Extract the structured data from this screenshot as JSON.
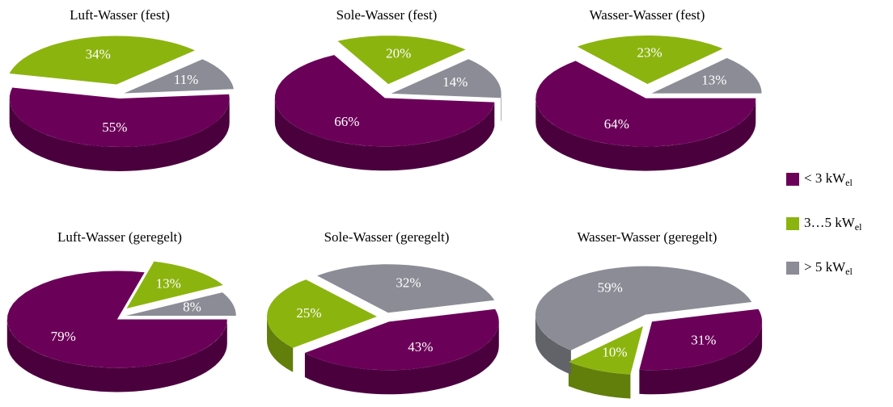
{
  "chart_data": [
    {
      "type": "pie",
      "title": "Luft-Wasser (fest)",
      "values": [
        55,
        34,
        11
      ],
      "value_labels": [
        "55%",
        "34%",
        "11%"
      ]
    },
    {
      "type": "pie",
      "title": "Sole-Wasser (fest)",
      "values": [
        66,
        20,
        14
      ],
      "value_labels": [
        "66%",
        "20%",
        "14%"
      ]
    },
    {
      "type": "pie",
      "title": "Wasser-Wasser (fest)",
      "values": [
        64,
        23,
        13
      ],
      "value_labels": [
        "64%",
        "23%",
        "13%"
      ]
    },
    {
      "type": "pie",
      "title": "Luft-Wasser (geregelt)",
      "values": [
        79,
        13,
        8
      ],
      "value_labels": [
        "79%",
        "13%",
        "8%"
      ]
    },
    {
      "type": "pie",
      "title": "Sole-Wasser (geregelt)",
      "values": [
        43,
        25,
        32
      ],
      "value_labels": [
        "43%",
        "25%",
        "32%"
      ]
    },
    {
      "type": "pie",
      "title": "Wasser-Wasser (geregelt)",
      "values": [
        31,
        10,
        59
      ],
      "value_labels": [
        "31%",
        "10%",
        "59%"
      ]
    }
  ],
  "legend": {
    "labels": [
      {
        "main": "< 3 kW",
        "sub": "el"
      },
      {
        "main": "3…5 kW",
        "sub": "el"
      },
      {
        "main": "> 5 kW",
        "sub": "el"
      }
    ],
    "colors": [
      "#6b0058",
      "#8cb40f",
      "#8c8c96"
    ]
  }
}
